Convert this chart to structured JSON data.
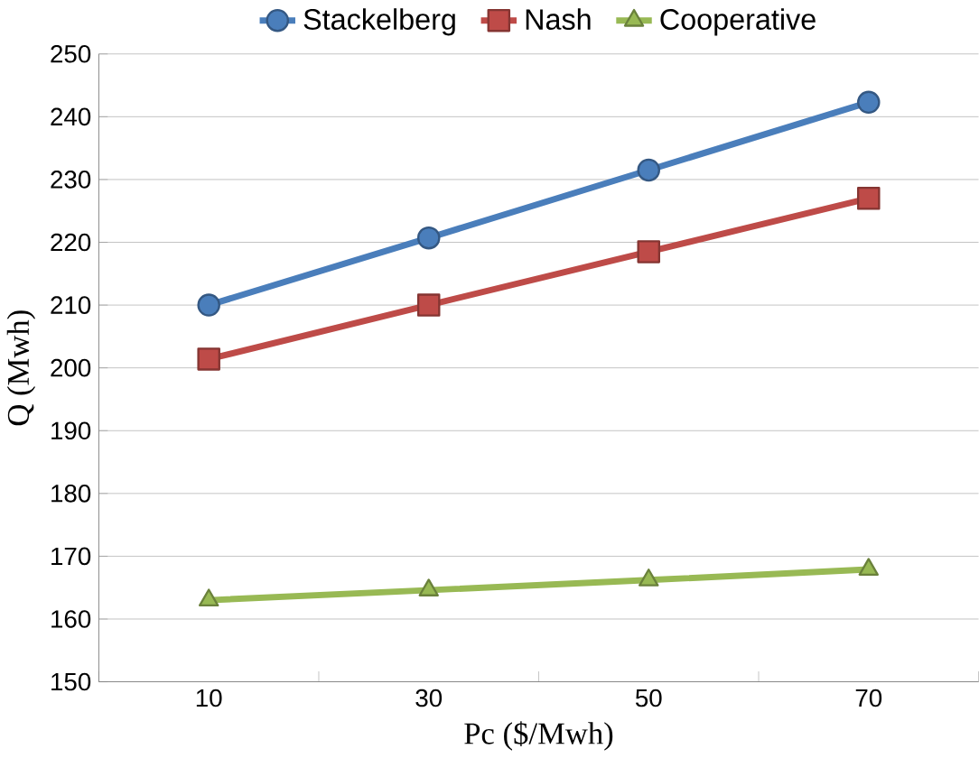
{
  "chart_data": {
    "type": "line",
    "xlabel": "Pc ($/Mwh)",
    "ylabel": "Q (Mwh)",
    "categories": [
      "10",
      "30",
      "50",
      "70"
    ],
    "series": [
      {
        "name": "Stackelberg",
        "color": "#4a7ebb",
        "marker": "circle",
        "values": [
          210,
          220.7,
          231.5,
          242.3
        ]
      },
      {
        "name": "Nash",
        "color": "#be4b48",
        "marker": "square",
        "values": [
          201.4,
          210,
          218.5,
          227
        ]
      },
      {
        "name": "Cooperative",
        "color": "#98b954",
        "marker": "triangle",
        "values": [
          163,
          164.6,
          166.2,
          167.9
        ]
      }
    ],
    "ylim": [
      150,
      250
    ],
    "yticks": [
      150,
      160,
      170,
      180,
      190,
      200,
      210,
      220,
      230,
      240,
      250
    ],
    "grid": "y",
    "legend": "top",
    "line_style": "solid"
  }
}
